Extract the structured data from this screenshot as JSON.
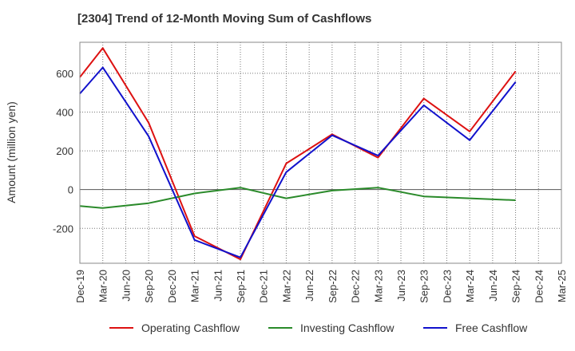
{
  "chart_data": {
    "type": "line",
    "title": "[2304]  Trend of 12-Month Moving Sum of Cashflows",
    "ylabel": "Amount (million yen)",
    "xlabel": "",
    "ylim": [
      -380,
      760
    ],
    "yticks": [
      -200,
      0,
      200,
      400,
      600
    ],
    "grid": true,
    "legend_position": "bottom",
    "categories": [
      "Dec-19",
      "Mar-20",
      "Jun-20",
      "Sep-20",
      "Dec-20",
      "Mar-21",
      "Jun-21",
      "Sep-21",
      "Dec-21",
      "Mar-22",
      "Jun-22",
      "Sep-22",
      "Dec-22",
      "Mar-23",
      "Jun-23",
      "Sep-23",
      "Dec-23",
      "Mar-24",
      "Jun-24",
      "Sep-24",
      "Dec-24",
      "Mar-25"
    ],
    "series": [
      {
        "name": "Operating Cashflow",
        "color": "#dd1111",
        "values": [
          580,
          730,
          null,
          345,
          null,
          -240,
          null,
          -360,
          null,
          135,
          null,
          285,
          null,
          165,
          null,
          470,
          null,
          300,
          null,
          610,
          null,
          null
        ]
      },
      {
        "name": "Investing Cashflow",
        "color": "#2a8a2a",
        "values": [
          -85,
          -95,
          null,
          -70,
          null,
          -20,
          null,
          10,
          null,
          -45,
          null,
          -5,
          null,
          10,
          null,
          -35,
          null,
          -45,
          null,
          -55,
          null,
          null
        ]
      },
      {
        "name": "Free Cashflow",
        "color": "#1111cc",
        "values": [
          495,
          630,
          null,
          275,
          null,
          -260,
          null,
          -350,
          null,
          90,
          null,
          280,
          null,
          175,
          null,
          435,
          null,
          255,
          null,
          555,
          null,
          null
        ]
      }
    ]
  }
}
